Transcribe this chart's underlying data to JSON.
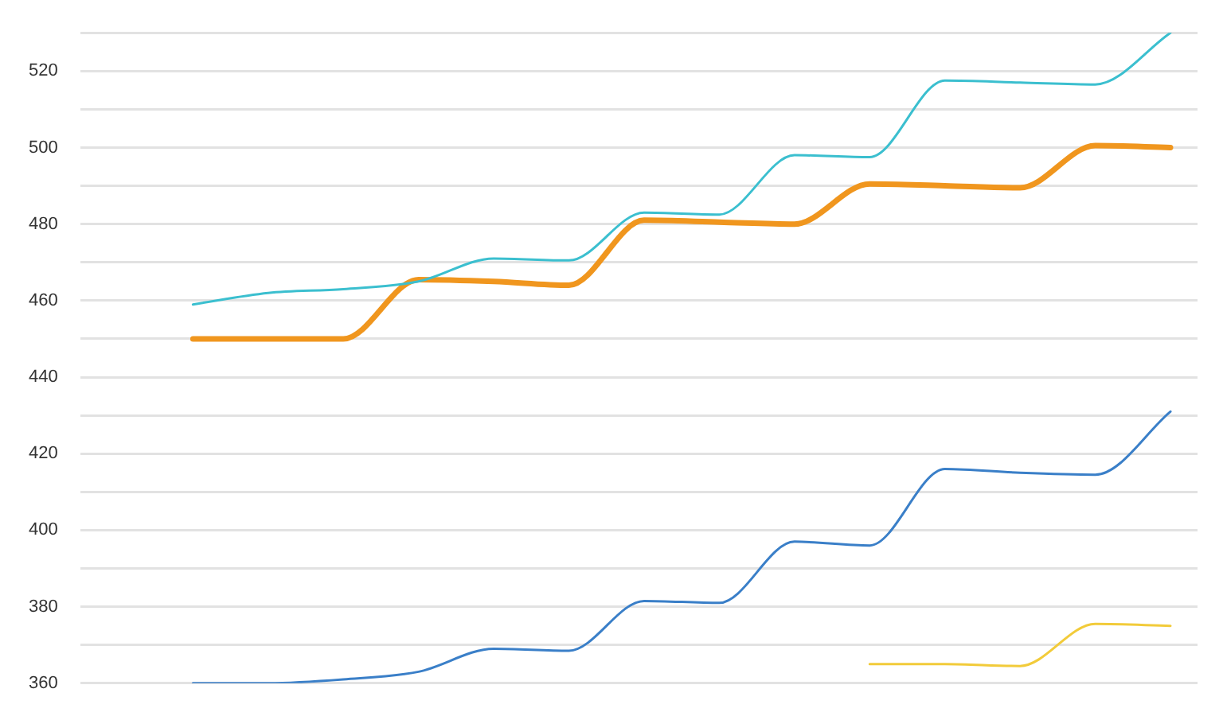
{
  "chart_data": {
    "type": "line",
    "categories": [
      null,
      null,
      null,
      null,
      null,
      null,
      null,
      null,
      null,
      null,
      null,
      null,
      null,
      null
    ],
    "series": [
      {
        "color": "#3bbfcf",
        "values": [
          459,
          462,
          463,
          465,
          471,
          470.5,
          483,
          482.5,
          498,
          497.5,
          517.5,
          517,
          516.5,
          530
        ]
      },
      {
        "color": "#f0961e",
        "values": [
          450,
          450,
          450,
          465.5,
          465,
          464,
          481,
          480.5,
          480,
          490.5,
          490,
          489.5,
          500.5,
          500
        ]
      },
      {
        "color": "#3a7fc8",
        "values": [
          360,
          360,
          361,
          363,
          369,
          368.5,
          381.5,
          381,
          397,
          396,
          416,
          415,
          414.5,
          431
        ]
      },
      {
        "color": "#f2cb3a",
        "values": [
          null,
          null,
          null,
          null,
          null,
          null,
          null,
          null,
          null,
          365,
          365,
          364.5,
          375.5,
          375
        ]
      }
    ],
    "ylim": [
      360,
      530
    ],
    "yticks": [
      360,
      {
        "value": 370,
        "label": null
      },
      380,
      {
        "value": 390,
        "label": null
      },
      400,
      {
        "value": 410,
        "label": null
      },
      420,
      {
        "value": 430,
        "label": null
      },
      440,
      {
        "value": 450,
        "label": null
      },
      460,
      {
        "value": 470,
        "label": null
      },
      480,
      {
        "value": 490,
        "label": null
      },
      500,
      {
        "value": 510,
        "label": null
      },
      520,
      {
        "value": 530,
        "label": null
      }
    ],
    "grid": "y",
    "tick_labels": "y",
    "marker": "none",
    "line_style": "solid",
    "legend": false
  }
}
